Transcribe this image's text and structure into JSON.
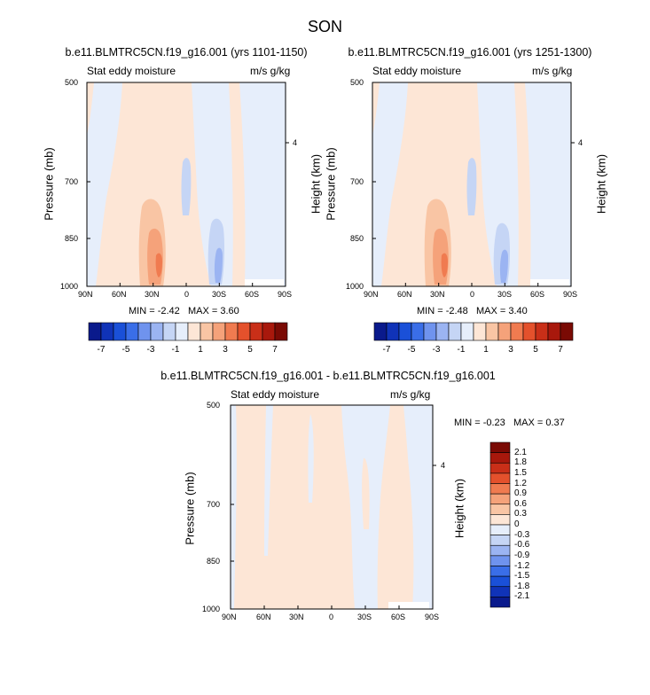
{
  "figure": {
    "title": "SON"
  },
  "panels": [
    {
      "title": "b.e11.BLMTRC5CN.f19_g16.001 (yrs 1101-1150)",
      "left_label": "Stat eddy moisture",
      "right_label": "m/s g/kg",
      "min_max": {
        "min_label": "MIN =",
        "min": "-2.42",
        "max_label": "MAX =",
        "max": "3.60"
      }
    },
    {
      "title": "b.e11.BLMTRC5CN.f19_g16.001 (yrs 1251-1300)",
      "left_label": "Stat eddy moisture",
      "right_label": "m/s g/kg",
      "min_max": {
        "min_label": "MIN =",
        "min": "-2.48",
        "max_label": "MAX =",
        "max": "3.40"
      }
    },
    {
      "title": "b.e11.BLMTRC5CN.f19_g16.001 - b.e11.BLMTRC5CN.f19_g16.001",
      "left_label": "Stat eddy moisture",
      "right_label": "m/s g/kg",
      "min_max": {
        "min_label": "MIN =",
        "min": "-0.23",
        "max_label": "MAX =",
        "max": "0.37"
      }
    }
  ],
  "axes": {
    "ylabel": "Pressure (mb)",
    "ylabel_right": "Height (km)",
    "x_ticks": [
      "90N",
      "60N",
      "30N",
      "0",
      "30S",
      "60S",
      "90S"
    ],
    "y_ticks": [
      "500",
      "700",
      "850",
      "1000"
    ],
    "y_right_ticks": [
      "4"
    ]
  },
  "colorbars": {
    "main": {
      "colors": [
        "#0a1a8c",
        "#1033b8",
        "#1a50d8",
        "#3a6ee8",
        "#6f93ee",
        "#9bb4f2",
        "#c5d5f5",
        "#e6eefb",
        "#fde6d6",
        "#f9c5a4",
        "#f5a27a",
        "#f07b50",
        "#e4512c",
        "#c92f18",
        "#a8180c",
        "#7a0a04"
      ],
      "labels": [
        "-7",
        "-5",
        "-3",
        "-1",
        "1",
        "3",
        "5",
        "7"
      ]
    },
    "diff": {
      "colors": [
        "#7a0a04",
        "#a8180c",
        "#c92f18",
        "#e4512c",
        "#f07b50",
        "#f5a27a",
        "#f9c5a4",
        "#fde6d6",
        "#e6eefb",
        "#c5d5f5",
        "#9bb4f2",
        "#6f93ee",
        "#3a6ee8",
        "#1a50d8",
        "#1033b8",
        "#0a1a8c"
      ],
      "labels": [
        "2.1",
        "1.8",
        "1.5",
        "1.2",
        "0.9",
        "0.6",
        "0.3",
        "0",
        "-0.3",
        "-0.6",
        "-0.9",
        "-1.2",
        "-1.5",
        "-1.8",
        "-2.1"
      ]
    }
  },
  "chart_data": [
    {
      "type": "heatmap",
      "title": "b.e11.BLMTRC5CN.f19_g16.001 (yrs 1101-1150)",
      "xlabel": "",
      "ylabel": "Pressure (mb)",
      "ylabel_right": "Height (km)",
      "x_range": [
        -90,
        90
      ],
      "y_range": [
        1000,
        500
      ],
      "x_ticks": [
        "90N",
        "60N",
        "30N",
        "0",
        "30S",
        "60S",
        "90S"
      ],
      "y_ticks": [
        500,
        700,
        850,
        1000
      ],
      "min": -2.42,
      "max": 3.6,
      "colorbar_levels": [
        -7,
        -5,
        -3,
        -1,
        1,
        3,
        5,
        7
      ]
    },
    {
      "type": "heatmap",
      "title": "b.e11.BLMTRC5CN.f19_g16.001 (yrs 1251-1300)",
      "xlabel": "",
      "ylabel": "Pressure (mb)",
      "ylabel_right": "Height (km)",
      "x_range": [
        -90,
        90
      ],
      "y_range": [
        1000,
        500
      ],
      "x_ticks": [
        "90N",
        "60N",
        "30N",
        "0",
        "30S",
        "60S",
        "90S"
      ],
      "y_ticks": [
        500,
        700,
        850,
        1000
      ],
      "min": -2.48,
      "max": 3.4,
      "colorbar_levels": [
        -7,
        -5,
        -3,
        -1,
        1,
        3,
        5,
        7
      ]
    },
    {
      "type": "heatmap",
      "title": "b.e11.BLMTRC5CN.f19_g16.001 - b.e11.BLMTRC5CN.f19_g16.001",
      "xlabel": "",
      "ylabel": "Pressure (mb)",
      "ylabel_right": "Height (km)",
      "x_range": [
        -90,
        90
      ],
      "y_range": [
        1000,
        500
      ],
      "x_ticks": [
        "90N",
        "60N",
        "30N",
        "0",
        "30S",
        "60S",
        "90S"
      ],
      "y_ticks": [
        500,
        700,
        850,
        1000
      ],
      "min": -0.23,
      "max": 0.37,
      "colorbar_levels": [
        -2.1,
        -1.8,
        -1.5,
        -1.2,
        -0.9,
        -0.6,
        -0.3,
        0,
        0.3,
        0.6,
        0.9,
        1.2,
        1.5,
        1.8,
        2.1
      ]
    }
  ]
}
